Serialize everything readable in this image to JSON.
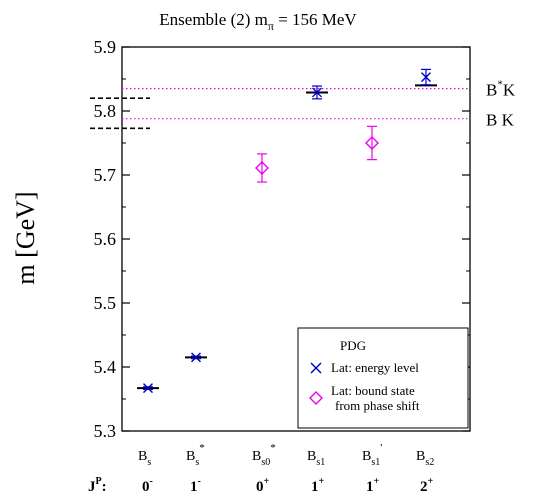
{
  "chart_data": {
    "type": "scatter",
    "title": {
      "main": "Ensemble (2) m",
      "sub": "π",
      "rest": " = 156 MeV"
    },
    "ylabel": "m [GeV]",
    "ylim": [
      5.3,
      5.9
    ],
    "yticks": [
      5.3,
      5.4,
      5.5,
      5.6,
      5.7,
      5.8,
      5.9
    ],
    "ytick_labels": [
      "5.3",
      "5.4",
      "5.5",
      "5.6",
      "5.7",
      "5.8",
      "5.9"
    ],
    "grid": false,
    "legend_position": "bottom-right",
    "jp_label": {
      "main": "J",
      "sup": "P",
      "rest": ":"
    },
    "categories": [
      {
        "base": "B",
        "sub": "s",
        "sup": "",
        "jp": "0",
        "parity": "-"
      },
      {
        "base": "B",
        "sub": "s",
        "sup": "*",
        "jp": "1",
        "parity": "-"
      },
      {
        "base": "B",
        "sub": "s0",
        "sup": "*",
        "jp": "0",
        "parity": "+"
      },
      {
        "base": "B",
        "sub": "s1",
        "sup": "",
        "jp": "1",
        "parity": "+"
      },
      {
        "base": "B",
        "sub": "s1",
        "sup": "'",
        "jp": "1",
        "parity": "+"
      },
      {
        "base": "B",
        "sub": "s2",
        "sup": "",
        "jp": "2",
        "parity": "+"
      }
    ],
    "series": [
      {
        "name": "PDG",
        "marker": "hline",
        "color": "#000000",
        "points": [
          {
            "x": 0,
            "y": 5.367
          },
          {
            "x": 1,
            "y": 5.415
          },
          {
            "x": 3,
            "y": 5.829
          },
          {
            "x": 5,
            "y": 5.84
          }
        ]
      },
      {
        "name": "Lat: energy level",
        "marker": "x",
        "color": "#0000cc",
        "points": [
          {
            "x": 0,
            "y": 5.367,
            "err": 0.002
          },
          {
            "x": 1,
            "y": 5.415,
            "err": 0.002
          },
          {
            "x": 3,
            "y": 5.829,
            "err": 0.01
          },
          {
            "x": 5,
            "y": 5.853,
            "err": 0.012
          }
        ]
      },
      {
        "name": "Lat: bound state from phase shift",
        "marker": "diamond",
        "color": "#ee00ee",
        "points": [
          {
            "x": 2,
            "y": 5.711,
            "err": 0.022
          },
          {
            "x": 4,
            "y": 5.75,
            "err": 0.026
          }
        ]
      }
    ],
    "thresholds": [
      {
        "label_main": "B",
        "label_sup": "*",
        "label_rest": "K",
        "y": 5.835,
        "color": "#ee00ee",
        "style": "dotted"
      },
      {
        "label_main": "B",
        "label_sup": "",
        "label_rest": " K",
        "y": 5.788,
        "color": "#ee00ee",
        "style": "dotted"
      }
    ],
    "dashed_marks": [
      {
        "y": 5.82,
        "color": "#000000"
      },
      {
        "y": 5.773,
        "color": "#000000"
      }
    ],
    "legend": [
      {
        "label": "PDG",
        "marker": "hline"
      },
      {
        "label": "Lat: energy level",
        "marker": "x"
      },
      {
        "label": "Lat: bound state",
        "label2": "from phase shift",
        "marker": "diamond"
      }
    ]
  }
}
